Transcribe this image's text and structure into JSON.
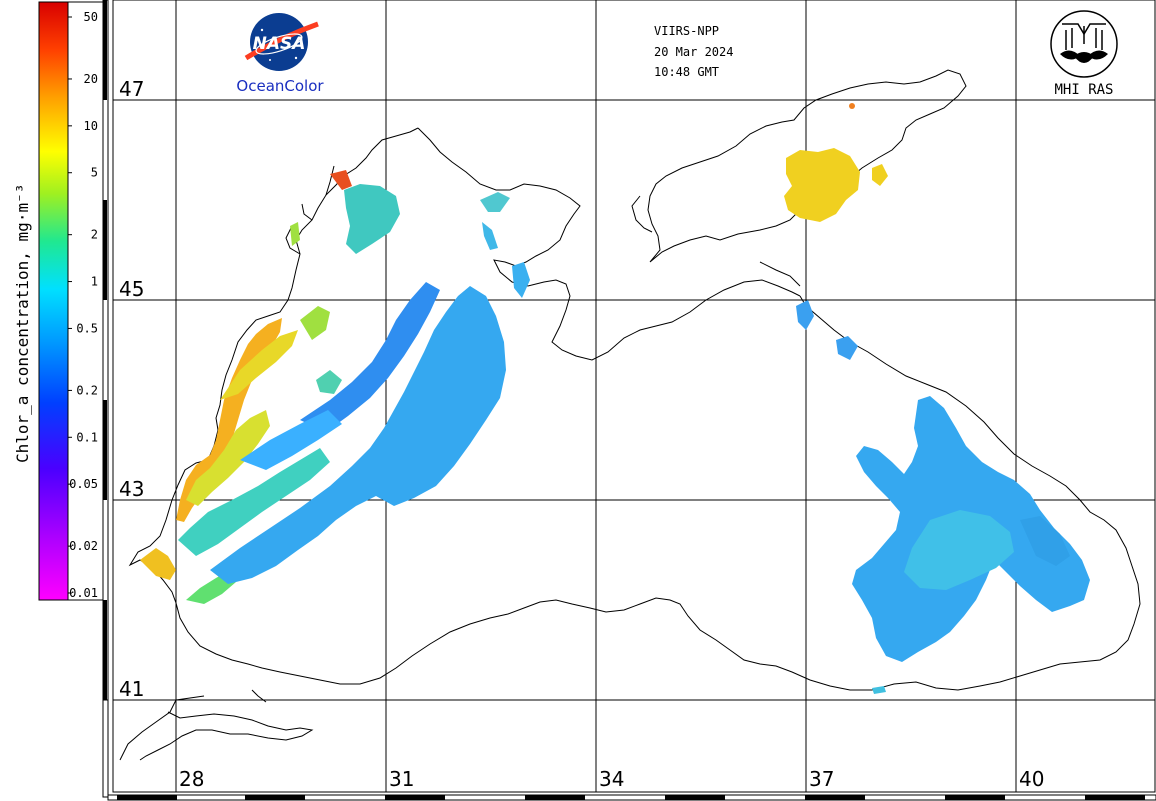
{
  "header": {
    "satellite": "VIIRS-NPP",
    "date": "20 Mar 2024",
    "time": "10:48 GMT"
  },
  "logos": {
    "nasa": {
      "text": "NASA",
      "caption": "OceanColor",
      "icon": "nasa-meatball-logo"
    },
    "mhi": {
      "caption": "MHI RAS",
      "icon": "mhi-ras-logo"
    }
  },
  "colorbar": {
    "title": "Chlor_a concentration, mg·m⁻³",
    "scale": "log",
    "ticks": [
      "50",
      "20",
      "10",
      "5",
      "2",
      "1",
      "0.5",
      "0.2",
      "0.1",
      "0.05",
      "0.02",
      "0.01"
    ],
    "colors": [
      "#ff00ff",
      "#a000ff",
      "#4000ff",
      "#0040ff",
      "#0098ff",
      "#00e0ff",
      "#20e890",
      "#a0f020",
      "#ffff00",
      "#ffa000",
      "#ff4000",
      "#d80000"
    ]
  },
  "map": {
    "latitude_labels": [
      "47",
      "45",
      "43",
      "41"
    ],
    "longitude_labels": [
      "28",
      "31",
      "34",
      "37",
      "40"
    ],
    "land_color": "#ffffff",
    "coast_color": "#000000",
    "grid_color": "#000000"
  }
}
